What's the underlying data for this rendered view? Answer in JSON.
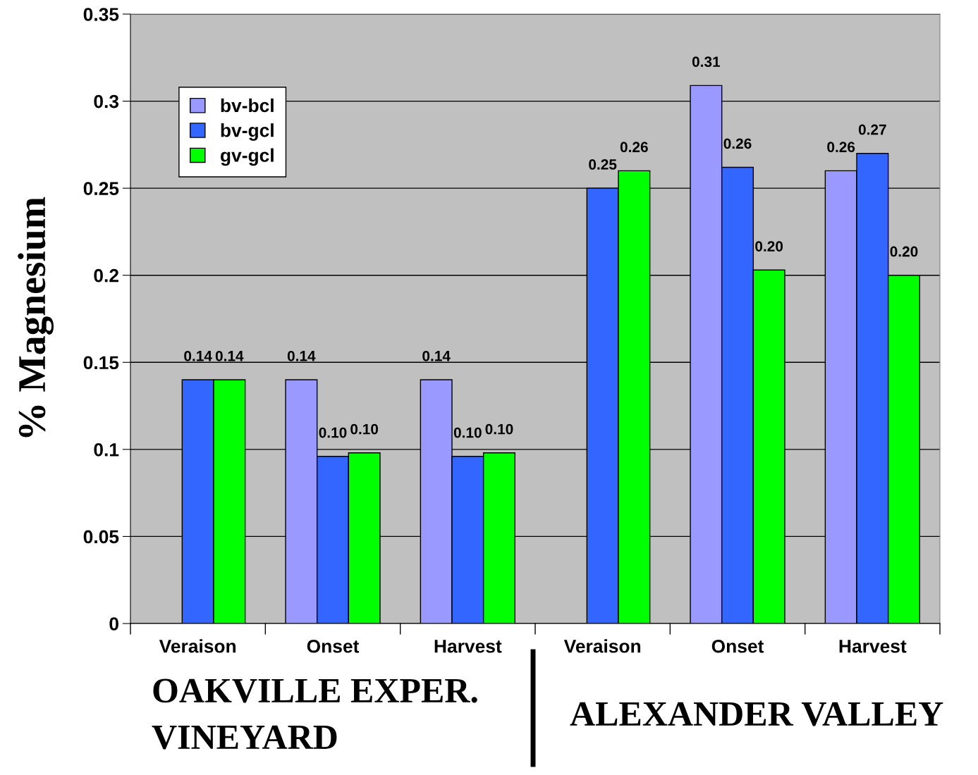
{
  "chart_data": {
    "type": "bar",
    "ylabel": "% Magnesium",
    "categories": [
      "Veraison",
      "Onset",
      "Harvest",
      "Veraison",
      "Onset",
      "Harvest"
    ],
    "series": [
      {
        "name": "bv-bcl",
        "color": "#9999ff",
        "values": [
          null,
          0.14,
          0.14,
          null,
          0.309,
          0.26
        ],
        "value_labels": [
          null,
          "0.14",
          "0.14",
          null,
          "0.31",
          "0.26"
        ]
      },
      {
        "name": "bv-gcl",
        "color": "#3366ff",
        "values": [
          0.14,
          0.096,
          0.096,
          0.25,
          0.262,
          0.27
        ],
        "value_labels": [
          "0.14",
          "0.10",
          "0.10",
          "0.25",
          "0.26",
          "0.27"
        ]
      },
      {
        "name": "gv-gcl",
        "color": "#00ff00",
        "values": [
          0.14,
          0.098,
          0.098,
          0.26,
          0.203,
          0.2
        ],
        "value_labels": [
          "0.14",
          "0.10",
          "0.10",
          "0.26",
          "0.20",
          "0.20"
        ]
      }
    ],
    "ylim": [
      0,
      0.35
    ],
    "yticks": [
      0,
      0.05,
      0.1,
      0.15,
      0.2,
      0.25,
      0.3,
      0.35
    ],
    "grid": "y",
    "legend": "top left",
    "annotations": [
      "OAKVILLE EXPER. VINEYARD",
      "ALEXANDER VALLEY"
    ]
  }
}
